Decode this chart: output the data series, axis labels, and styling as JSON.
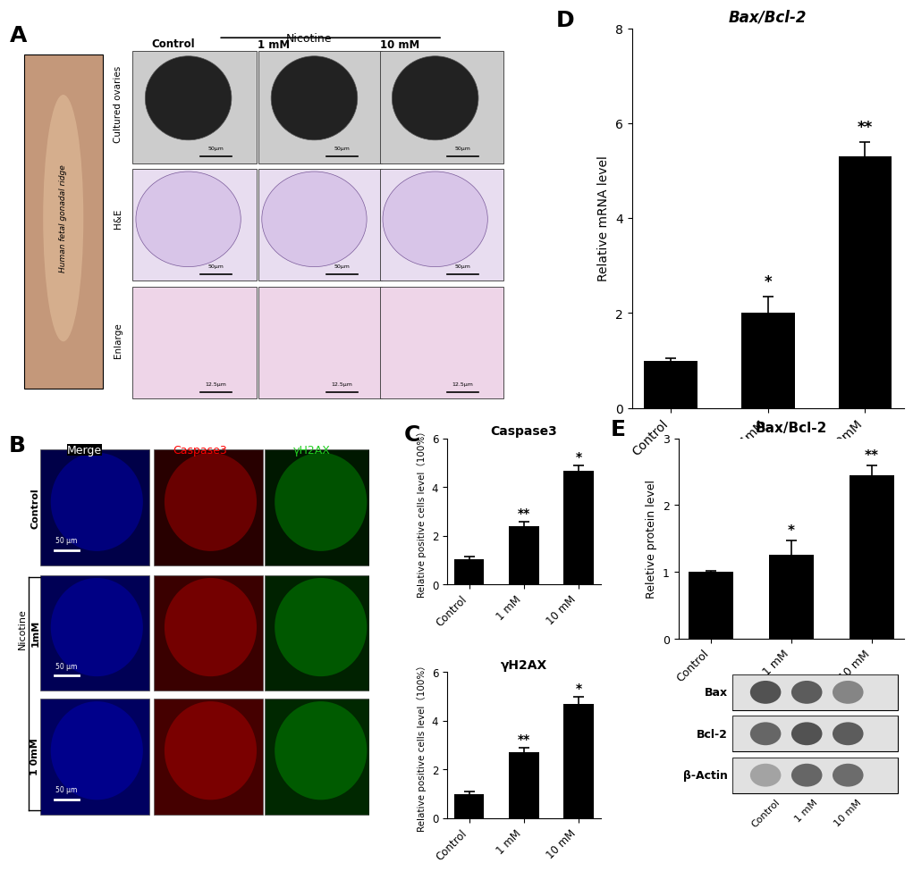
{
  "panel_D": {
    "title": "Bax/Bcl-2",
    "categories": [
      "Control",
      "1mM",
      "10mM"
    ],
    "values": [
      1.0,
      2.0,
      5.3
    ],
    "errors": [
      0.05,
      0.35,
      0.3
    ],
    "ylabel": "Relative mRNA level",
    "ylim": [
      0,
      8
    ],
    "yticks": [
      0,
      2,
      4,
      6,
      8
    ],
    "bar_color": "#000000",
    "sig_labels": [
      "",
      "*",
      "**"
    ]
  },
  "panel_C_casp3": {
    "title": "Caspase3",
    "categories": [
      "Control",
      "1 mM",
      "10 mM"
    ],
    "values": [
      1.05,
      2.4,
      4.65
    ],
    "errors": [
      0.1,
      0.18,
      0.22
    ],
    "ylabel": "Relative positive cells level （100%）",
    "ylim": [
      0,
      6
    ],
    "yticks": [
      0,
      2,
      4,
      6
    ],
    "bar_color": "#000000",
    "sig_labels": [
      "",
      "**",
      "*"
    ]
  },
  "panel_C_yH2AX": {
    "title": "γH2AX",
    "categories": [
      "Control",
      "1 mM",
      "10 mM"
    ],
    "values": [
      1.0,
      2.7,
      4.7
    ],
    "errors": [
      0.08,
      0.18,
      0.28
    ],
    "ylabel": "Relative positive cells level （100%）",
    "ylim": [
      0,
      6
    ],
    "yticks": [
      0,
      2,
      4,
      6
    ],
    "bar_color": "#000000",
    "sig_labels": [
      "",
      "**",
      "*"
    ]
  },
  "panel_E": {
    "title": "Bax/Bcl-2",
    "categories": [
      "Control",
      "1 mM",
      "10 mM"
    ],
    "values": [
      1.0,
      1.25,
      2.45
    ],
    "errors": [
      0.02,
      0.22,
      0.15
    ],
    "ylabel": "Reletive protein level",
    "ylim": [
      0,
      3
    ],
    "yticks": [
      0,
      1,
      2,
      3
    ],
    "bar_color": "#000000",
    "sig_labels": [
      "",
      "*",
      "**"
    ],
    "wb_labels": [
      "Bax",
      "Bcl-2",
      "β-Actin"
    ]
  },
  "bg_color": "#ffffff"
}
